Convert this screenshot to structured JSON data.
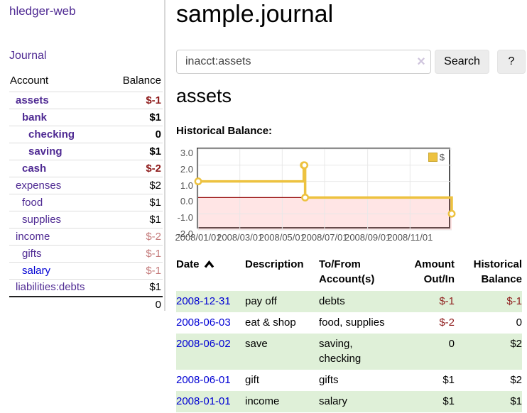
{
  "app": {
    "brand": "hledger-web"
  },
  "sidebar": {
    "journal_link": "Journal",
    "accounts": {
      "headers": {
        "account": "Account",
        "balance": "Balance"
      },
      "rows": [
        {
          "account": "assets",
          "balance": "$-1"
        },
        {
          "account": "bank",
          "balance": "$1"
        },
        {
          "account": "checking",
          "balance": "0"
        },
        {
          "account": "saving",
          "balance": "$1"
        },
        {
          "account": "cash",
          "balance": "$-2"
        },
        {
          "account": "expenses",
          "balance": "$2"
        },
        {
          "account": "food",
          "balance": "$1"
        },
        {
          "account": "supplies",
          "balance": "$1"
        },
        {
          "account": "income",
          "balance": "$-2"
        },
        {
          "account": "gifts",
          "balance": "$-1"
        },
        {
          "account": "salary",
          "balance": "$-1"
        },
        {
          "account": "liabilities:debts",
          "balance": "$1"
        }
      ],
      "total": "0"
    }
  },
  "main": {
    "title": "sample.journal",
    "search": {
      "value": "inacct:assets",
      "clear": "×",
      "search_button": "Search",
      "help_button": "?"
    },
    "account_heading": "assets",
    "chart_title": "Historical Balance:"
  },
  "chart_data": {
    "type": "line",
    "step": true,
    "title": "Historical Balance:",
    "series": [
      {
        "name": "$",
        "color": "#edc240",
        "points": [
          {
            "x": "2008/01/01",
            "y": 1
          },
          {
            "x": "2008/06/01",
            "y": 2
          },
          {
            "x": "2008/06/02",
            "y": 2
          },
          {
            "x": "2008/06/03",
            "y": 0
          },
          {
            "x": "2008/12/31",
            "y": -1
          }
        ]
      }
    ],
    "x_start": "2008/01/01",
    "x_end": "2008/12/31",
    "ylim": [
      -2,
      3
    ],
    "yticks": [
      "3.0",
      "2.0",
      "1.0",
      "0.0",
      "-1.0",
      "-2.0"
    ],
    "xticks": [
      "2008/01/01",
      "2008/03/01",
      "2008/05/01",
      "2008/07/01",
      "2008/09/01",
      "2008/11/01"
    ],
    "grid": true,
    "grid_color": "#e8e8e8",
    "zero_line_color": "#991111",
    "negative_fill": "rgba(255,0,0,0.10)",
    "frame_color": "#545454",
    "legend_label": "$",
    "legend_position": "top-right"
  },
  "register": {
    "headers": [
      [
        "Date",
        ""
      ],
      [
        "Description",
        ""
      ],
      [
        "To/From",
        "Account(s)"
      ],
      [
        "Amount",
        "Out/In"
      ],
      [
        "Historical",
        "Balance"
      ]
    ],
    "rows": [
      {
        "date": "2008-12-31",
        "description": "pay off",
        "accounts": "debts",
        "amount": "$-1",
        "balance": "$-1"
      },
      {
        "date": "2008-06-03",
        "description": "eat & shop",
        "accounts": "food, supplies",
        "amount": "$-2",
        "balance": "0"
      },
      {
        "date": "2008-06-02",
        "description": "save",
        "accounts": "saving, checking",
        "amount": "0",
        "balance": "$2"
      },
      {
        "date": "2008-06-01",
        "description": "gift",
        "accounts": "gifts",
        "amount": "$1",
        "balance": "$2"
      },
      {
        "date": "2008-01-01",
        "description": "income",
        "accounts": "salary",
        "amount": "$1",
        "balance": "$1"
      }
    ]
  }
}
